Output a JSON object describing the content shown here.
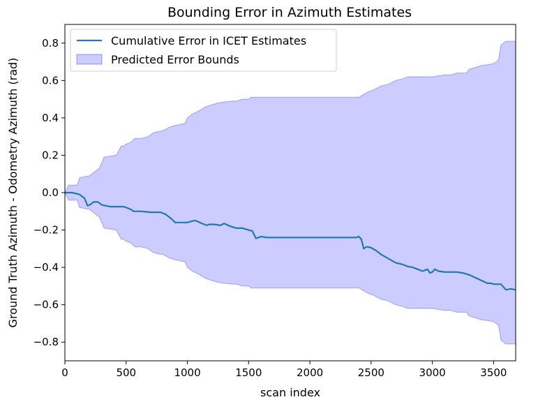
{
  "chart_data": {
    "type": "area",
    "title": "Bounding Error in Azimuth Estimates",
    "xlabel": "scan index",
    "ylabel": "Ground Truth Azimuth - Odometry Azimuth (rad)",
    "xlim": [
      0,
      3680
    ],
    "ylim": [
      -0.9,
      0.9
    ],
    "xticks": [
      0,
      500,
      1000,
      1500,
      2000,
      2500,
      3000,
      3500
    ],
    "yticks": [
      -0.8,
      -0.6,
      -0.4,
      -0.2,
      0.0,
      0.2,
      0.4,
      0.6,
      0.8
    ],
    "xtick_labels": [
      "0",
      "500",
      "1000",
      "1500",
      "2000",
      "2500",
      "3000",
      "3500"
    ],
    "ytick_labels": [
      "−0.8",
      "−0.6",
      "−0.4",
      "−0.2",
      "0.0",
      "0.2",
      "0.4",
      "0.6",
      "0.8"
    ],
    "legend_position": "top-left",
    "grid": false,
    "series": [
      {
        "name": "Cumulative Error in ICET Estimates",
        "kind": "line",
        "color": "#1f77b4",
        "x": [
          0,
          60,
          120,
          160,
          185,
          205,
          235,
          270,
          300,
          330,
          370,
          420,
          480,
          500,
          540,
          560,
          620,
          700,
          780,
          820,
          870,
          900,
          950,
          1000,
          1050,
          1070,
          1120,
          1160,
          1180,
          1220,
          1270,
          1300,
          1350,
          1400,
          1450,
          1500,
          1530,
          1560,
          1580,
          1600,
          1650,
          1700,
          1800,
          1900,
          2000,
          2100,
          2200,
          2300,
          2380,
          2400,
          2420,
          2440,
          2460,
          2470,
          2500,
          2540,
          2580,
          2620,
          2660,
          2700,
          2760,
          2800,
          2840,
          2880,
          2920,
          2960,
          2980,
          3000,
          3020,
          3050,
          3100,
          3150,
          3200,
          3250,
          3300,
          3350,
          3400,
          3450,
          3480,
          3500,
          3560,
          3580,
          3600,
          3640,
          3680
        ],
        "y": [
          0.0,
          0.0,
          -0.01,
          -0.03,
          -0.07,
          -0.065,
          -0.05,
          -0.05,
          -0.065,
          -0.07,
          -0.075,
          -0.075,
          -0.075,
          -0.08,
          -0.09,
          -0.1,
          -0.1,
          -0.105,
          -0.105,
          -0.115,
          -0.14,
          -0.16,
          -0.16,
          -0.16,
          -0.15,
          -0.15,
          -0.165,
          -0.175,
          -0.17,
          -0.17,
          -0.175,
          -0.165,
          -0.18,
          -0.19,
          -0.19,
          -0.2,
          -0.205,
          -0.245,
          -0.24,
          -0.235,
          -0.24,
          -0.24,
          -0.24,
          -0.24,
          -0.24,
          -0.24,
          -0.24,
          -0.24,
          -0.24,
          -0.235,
          -0.25,
          -0.3,
          -0.29,
          -0.29,
          -0.295,
          -0.31,
          -0.33,
          -0.345,
          -0.36,
          -0.375,
          -0.385,
          -0.395,
          -0.4,
          -0.41,
          -0.42,
          -0.41,
          -0.43,
          -0.425,
          -0.41,
          -0.42,
          -0.425,
          -0.425,
          -0.425,
          -0.43,
          -0.44,
          -0.455,
          -0.47,
          -0.485,
          -0.485,
          -0.49,
          -0.49,
          -0.505,
          -0.52,
          -0.515,
          -0.52
        ]
      },
      {
        "name": "Predicted Error Bounds",
        "kind": "band",
        "color": "#0000ff",
        "x": [
          0,
          30,
          100,
          120,
          200,
          280,
          300,
          320,
          420,
          460,
          480,
          500,
          540,
          570,
          620,
          680,
          720,
          780,
          800,
          850,
          900,
          980,
          1000,
          1040,
          1100,
          1150,
          1200,
          1250,
          1300,
          1380,
          1400,
          1450,
          1500,
          1520,
          1560,
          1580,
          2000,
          2300,
          2400,
          2450,
          2480,
          2520,
          2580,
          2640,
          2700,
          2760,
          2800,
          2900,
          3000,
          3100,
          3150,
          3200,
          3280,
          3300,
          3350,
          3400,
          3500,
          3540,
          3560,
          3600,
          3680
        ],
        "upper": [
          0.0,
          0.04,
          0.04,
          0.08,
          0.09,
          0.13,
          0.16,
          0.19,
          0.2,
          0.25,
          0.25,
          0.26,
          0.27,
          0.29,
          0.29,
          0.3,
          0.32,
          0.33,
          0.33,
          0.35,
          0.36,
          0.37,
          0.4,
          0.42,
          0.44,
          0.46,
          0.47,
          0.48,
          0.485,
          0.49,
          0.49,
          0.5,
          0.5,
          0.51,
          0.51,
          0.51,
          0.51,
          0.51,
          0.51,
          0.53,
          0.54,
          0.55,
          0.57,
          0.58,
          0.6,
          0.61,
          0.62,
          0.62,
          0.62,
          0.63,
          0.63,
          0.64,
          0.64,
          0.66,
          0.67,
          0.68,
          0.69,
          0.71,
          0.79,
          0.81,
          0.81
        ],
        "lower": [
          0.0,
          -0.04,
          -0.04,
          -0.08,
          -0.09,
          -0.13,
          -0.16,
          -0.19,
          -0.2,
          -0.25,
          -0.25,
          -0.26,
          -0.27,
          -0.29,
          -0.29,
          -0.3,
          -0.32,
          -0.33,
          -0.33,
          -0.35,
          -0.36,
          -0.37,
          -0.4,
          -0.42,
          -0.44,
          -0.46,
          -0.47,
          -0.48,
          -0.485,
          -0.49,
          -0.49,
          -0.5,
          -0.5,
          -0.51,
          -0.51,
          -0.51,
          -0.51,
          -0.51,
          -0.51,
          -0.53,
          -0.54,
          -0.55,
          -0.57,
          -0.58,
          -0.6,
          -0.61,
          -0.62,
          -0.62,
          -0.62,
          -0.63,
          -0.63,
          -0.64,
          -0.64,
          -0.66,
          -0.67,
          -0.68,
          -0.69,
          -0.71,
          -0.79,
          -0.81,
          -0.81
        ]
      }
    ]
  }
}
